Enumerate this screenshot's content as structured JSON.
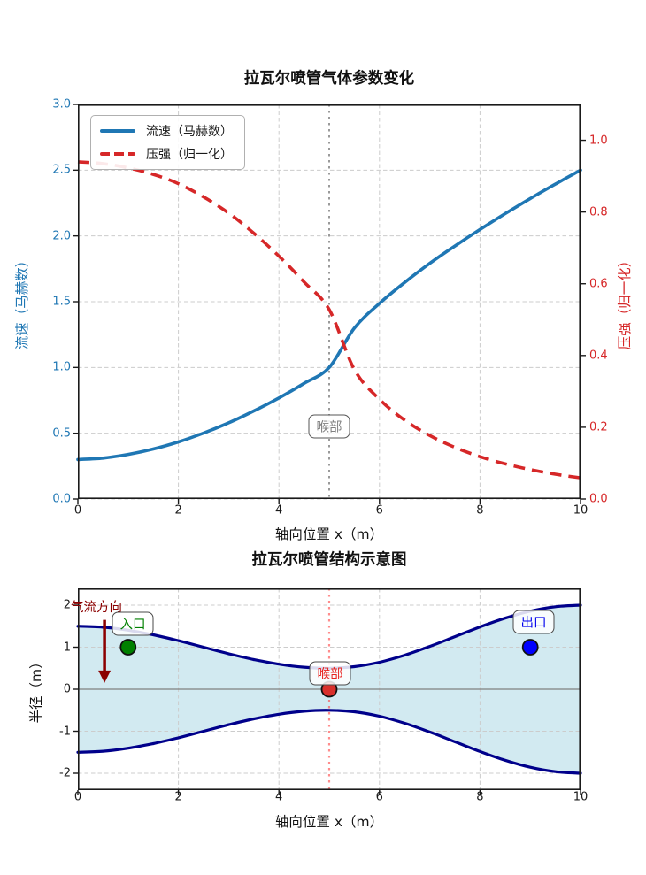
{
  "top_chart": {
    "title": "拉瓦尔喷管气体参数变化",
    "xlabel": "轴向位置 x（m）",
    "ylabel_left": "流速（马赫数）",
    "ylabel_right": "压强（归一化）",
    "legend": [
      {
        "label": "流速（马赫数）",
        "color": "#1f77b4",
        "style": "solid"
      },
      {
        "label": "压强（归一化）",
        "color": "#d62728",
        "style": "dashed"
      }
    ],
    "throat_label": "喉部",
    "x_ticks": [
      "0",
      "2",
      "4",
      "6",
      "8",
      "10"
    ],
    "y_ticks_left": [
      "0.0",
      "0.5",
      "1.0",
      "1.5",
      "2.0",
      "2.5",
      "3.0"
    ],
    "y_ticks_right": [
      "0.0",
      "0.2",
      "0.4",
      "0.6",
      "0.8",
      "1.0"
    ]
  },
  "bottom_chart": {
    "title": "拉瓦尔喷管结构示意图",
    "xlabel": "轴向位置 x（m）",
    "ylabel": "半径（m）",
    "x_ticks": [
      "0",
      "2",
      "4",
      "6",
      "8",
      "10"
    ],
    "y_ticks": [
      "2",
      "1",
      "0",
      "-1",
      "-2"
    ],
    "labels": {
      "inlet": "入口",
      "outlet": "出口",
      "throat": "喉部",
      "flow_direction": "气流方向"
    }
  },
  "colors": {
    "mach_line": "#1f77b4",
    "pressure_line": "#d62728",
    "throat_vline_top": "#9a9a9a",
    "throat_vline_bottom": "rgba(255,45,45,0.55)",
    "grid": "#cccccc",
    "spine": "#1a1a1a",
    "nozzle_wall": "#00008b",
    "nozzle_fill": "rgba(173,216,230,0.55)",
    "centerline": "#808080",
    "flow_arrow": "#8b0000",
    "inlet_marker": "#008000",
    "outlet_marker": "#0000ff",
    "throat_marker": "#d9302c",
    "marker_edge": "#111111"
  },
  "chart_data": [
    {
      "type": "line",
      "title": "拉瓦尔喷管气体参数变化",
      "xlabel": "轴向位置 x（m）",
      "x": [
        0,
        0.5,
        1,
        1.5,
        2,
        2.5,
        3,
        3.5,
        4,
        4.5,
        5,
        5.5,
        6,
        6.5,
        7,
        7.5,
        8,
        8.5,
        9,
        9.5,
        10
      ],
      "series": [
        {
          "name": "流速（马赫数）",
          "axis": "left",
          "color": "#1f77b4",
          "style": "solid",
          "values": [
            0.3,
            0.311,
            0.339,
            0.38,
            0.434,
            0.501,
            0.579,
            0.669,
            0.768,
            0.879,
            1.0,
            1.299,
            1.487,
            1.646,
            1.791,
            1.923,
            2.049,
            2.169,
            2.284,
            2.394,
            2.5
          ]
        },
        {
          "name": "压强（归一化）",
          "axis": "right",
          "color": "#d62728",
          "style": "dashed",
          "values": [
            0.94,
            0.935,
            0.923,
            0.905,
            0.879,
            0.842,
            0.797,
            0.741,
            0.677,
            0.605,
            0.528,
            0.361,
            0.278,
            0.22,
            0.177,
            0.144,
            0.118,
            0.098,
            0.082,
            0.069,
            0.059
          ]
        }
      ],
      "xlim": [
        0,
        10
      ],
      "ylim_left": [
        0,
        3
      ],
      "ylim_right": [
        0,
        1.1
      ],
      "throat_x": 5,
      "grid": true,
      "legend_position": "upper left",
      "annotations": [
        {
          "text": "喉部",
          "x": 5,
          "y": 0.55
        }
      ]
    },
    {
      "type": "area",
      "title": "拉瓦尔喷管结构示意图",
      "xlabel": "轴向位置 x（m）",
      "ylabel": "半径（m）",
      "x": [
        0,
        0.5,
        1,
        1.5,
        2,
        2.5,
        3,
        3.5,
        4,
        4.5,
        5,
        5.5,
        6,
        6.5,
        7,
        7.5,
        8,
        8.5,
        9,
        9.5,
        10
      ],
      "wall_upper": [
        1.5,
        1.476,
        1.405,
        1.294,
        1.155,
        1.0,
        0.845,
        0.706,
        0.595,
        0.524,
        0.5,
        0.537,
        0.643,
        0.809,
        1.018,
        1.25,
        1.482,
        1.691,
        1.857,
        1.963,
        2.0
      ],
      "wall_lower": [
        -1.5,
        -1.476,
        -1.405,
        -1.294,
        -1.155,
        -1.0,
        -0.845,
        -0.706,
        -0.595,
        -0.524,
        -0.5,
        -0.537,
        -0.643,
        -0.809,
        -1.018,
        -1.25,
        -1.482,
        -1.691,
        -1.857,
        -1.963,
        -2.0
      ],
      "markers": [
        {
          "name": "入口",
          "x": 1,
          "y": 1,
          "color": "#008000"
        },
        {
          "name": "出口",
          "x": 9,
          "y": 1,
          "color": "#0000ff"
        },
        {
          "name": "喉部",
          "x": 5,
          "y": 0,
          "color": "#d9302c"
        }
      ],
      "flow_arrow": {
        "label": "气流方向",
        "from_x": 0.53,
        "from_y": 1.65,
        "to_x": 0.53,
        "to_y": 0.15
      },
      "xlim": [
        0,
        10
      ],
      "ylim": [
        -2.4,
        2.4
      ],
      "throat_x": 5,
      "grid": true
    }
  ]
}
